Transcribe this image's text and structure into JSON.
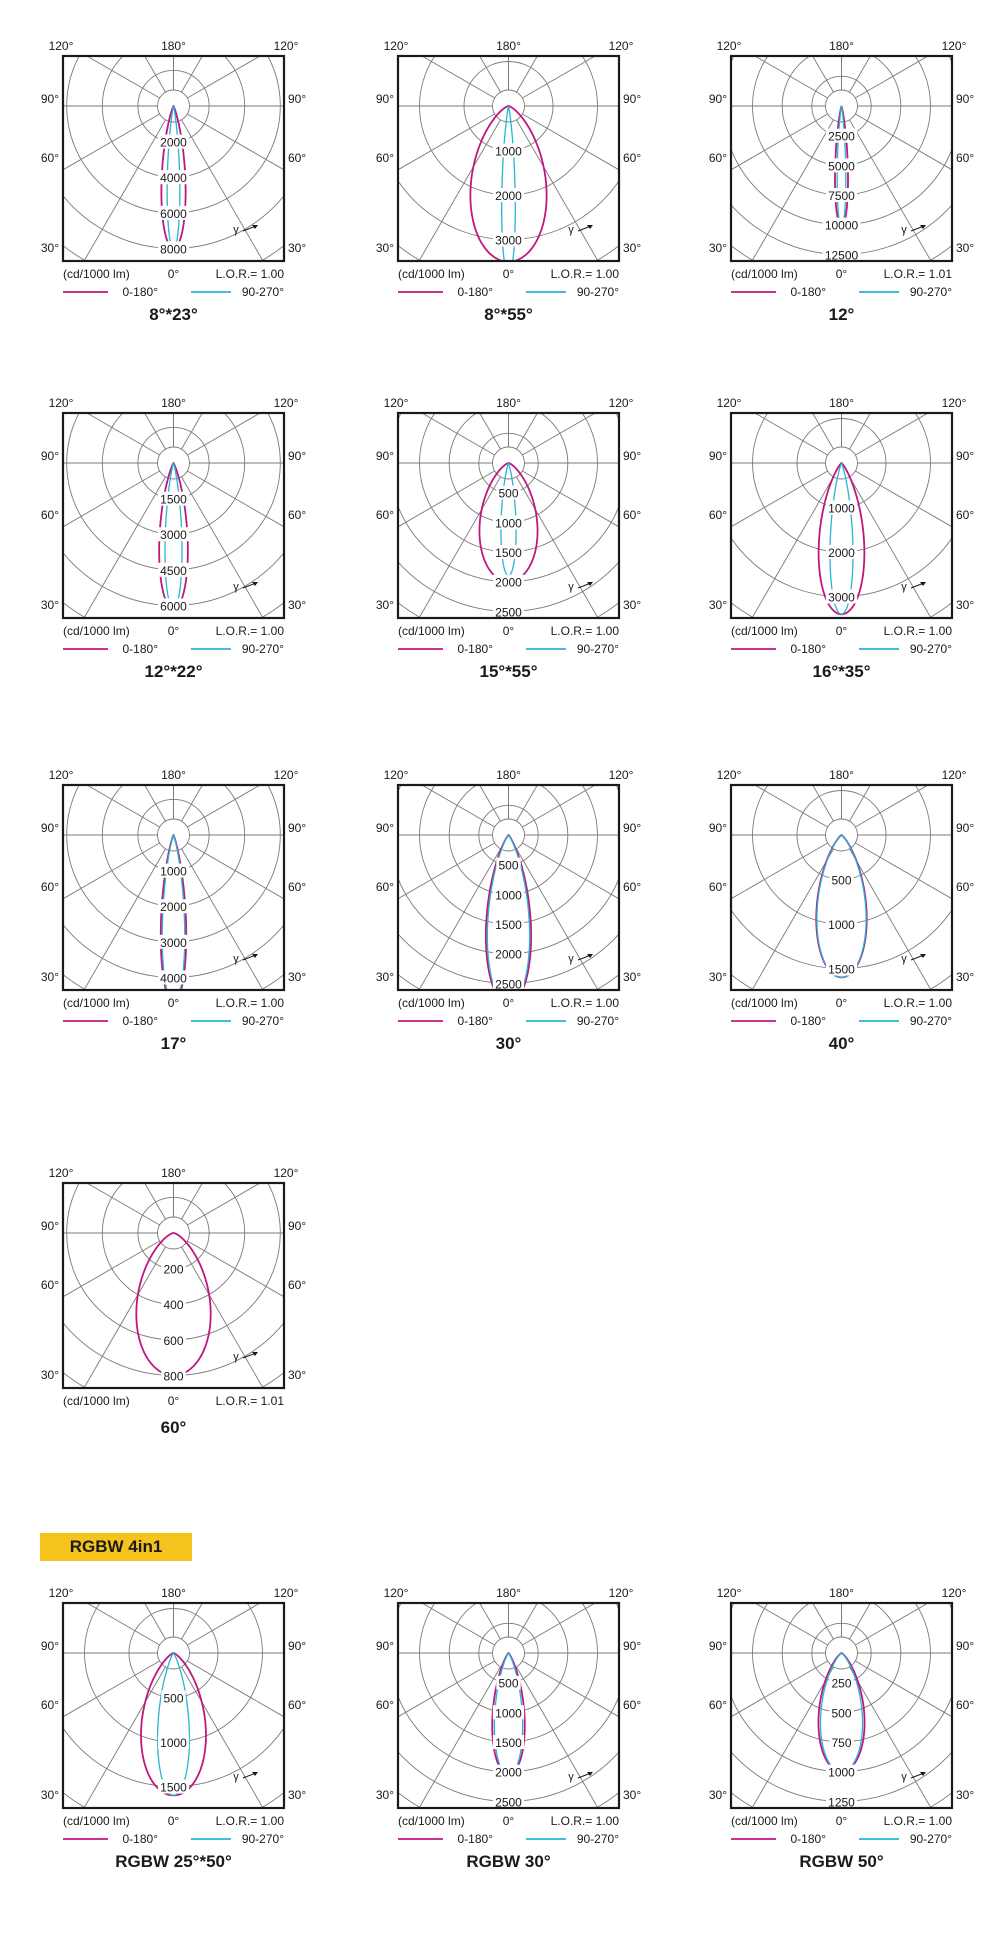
{
  "section": {
    "label": "RGBW 4in1"
  },
  "colors": {
    "c0_180": "#c0177f",
    "c90_270": "#26b5d3",
    "grid": "#7a7a7a",
    "frame": "#1a1a1a",
    "badge": "#f6c21c"
  },
  "common": {
    "unit_label": "(cd/1000 lm)",
    "zero_label": "0°",
    "angle_labels": {
      "top_left": "120°",
      "top_center": "180°",
      "top_right": "120°",
      "side_90": "90°",
      "side_60": "60°",
      "side_30": "30°"
    },
    "gamma_label": "γ",
    "legend": {
      "s1": "0-180°",
      "s2": "90-270°"
    }
  },
  "chart_data": [
    {
      "type": "polar",
      "title": "8°*23°",
      "lor": "L.O.R.= 1.00",
      "rings": [
        "2000",
        "4000",
        "6000",
        "8000",
        "10000"
      ],
      "r_max": 10000,
      "legend": true,
      "series": [
        {
          "name": "0-180°",
          "angle": 9.5,
          "peak": 8000
        },
        {
          "name": "90-270°",
          "angle": 5,
          "peak": 8000
        }
      ]
    },
    {
      "type": "polar",
      "title": "8°*55°",
      "lor": "L.O.R.= 1.00",
      "rings": [
        "1000",
        "2000",
        "3000",
        "4000"
      ],
      "r_max": 4000,
      "legend": true,
      "series": [
        {
          "name": "0-180°",
          "angle": 28,
          "peak": 3500
        },
        {
          "name": "90-270°",
          "angle": 4.5,
          "peak": 3800
        }
      ]
    },
    {
      "type": "polar",
      "title": "12°",
      "lor": "L.O.R.= 1.01",
      "rings": [
        "2500",
        "5000",
        "7500",
        "10000",
        "12500",
        "15000"
      ],
      "r_max": 15000,
      "legend": true,
      "series": [
        {
          "name": "0-180°",
          "angle": 6,
          "peak": 10200
        },
        {
          "name": "90-270°",
          "angle": 4,
          "peak": 10200
        }
      ]
    },
    {
      "type": "polar",
      "title": "12°*22°",
      "lor": "L.O.R.= 1.00",
      "rings": [
        "1500",
        "3000",
        "4500",
        "6000",
        "7500"
      ],
      "r_max": 7500,
      "legend": true,
      "series": [
        {
          "name": "0-180°",
          "angle": 11,
          "peak": 6150
        },
        {
          "name": "90-270°",
          "angle": 6.5,
          "peak": 6150
        }
      ]
    },
    {
      "type": "polar",
      "title": "15°*55°",
      "lor": "L.O.R.= 1.00",
      "rings": [
        "500",
        "1000",
        "1500",
        "2000",
        "2500",
        "3000"
      ],
      "r_max": 3000,
      "legend": true,
      "series": [
        {
          "name": "0-180°",
          "angle": 28,
          "peak": 2000
        },
        {
          "name": "90-270°",
          "angle": 7.5,
          "peak": 1900
        }
      ]
    },
    {
      "type": "polar",
      "title": "16°*35°",
      "lor": "L.O.R.= 1.00",
      "rings": [
        "1000",
        "2000",
        "3000",
        "4000"
      ],
      "r_max": 4000,
      "legend": true,
      "series": [
        {
          "name": "0-180°",
          "angle": 17,
          "peak": 3400
        },
        {
          "name": "90-270°",
          "angle": 8.5,
          "peak": 3400
        }
      ]
    },
    {
      "type": "polar",
      "title": "17°",
      "lor": "L.O.R.= 1.00",
      "rings": [
        "1000",
        "2000",
        "3000",
        "4000",
        "5000"
      ],
      "r_max": 5000,
      "legend": true,
      "series": [
        {
          "name": "0-180°",
          "angle": 8.5,
          "peak": 4700
        },
        {
          "name": "90-270°",
          "angle": 7.5,
          "peak": 4700
        }
      ]
    },
    {
      "type": "polar",
      "title": "30°",
      "lor": "L.O.R.= 1.00",
      "rings": [
        "500",
        "1000",
        "1500",
        "2000",
        "2500",
        "3000"
      ],
      "r_max": 3000,
      "legend": true,
      "series": [
        {
          "name": "0-180°",
          "angle": 15,
          "peak": 2850
        },
        {
          "name": "90-270°",
          "angle": 14,
          "peak": 2850
        }
      ]
    },
    {
      "type": "polar",
      "title": "40°",
      "lor": "L.O.R.= 1.00",
      "rings": [
        "500",
        "1000",
        "1500",
        "2000"
      ],
      "r_max": 2000,
      "legend": true,
      "series": [
        {
          "name": "0-180°",
          "angle": 20,
          "peak": 1600
        },
        {
          "name": "90-270°",
          "angle": 19.5,
          "peak": 1600
        }
      ]
    },
    {
      "type": "polar",
      "title": "60°",
      "lor": "L.O.R.= 1.01",
      "rings": [
        "200",
        "400",
        "600",
        "800",
        "1000"
      ],
      "r_max": 1000,
      "legend": false,
      "series": [
        {
          "name": "0-180°",
          "angle": 30,
          "peak": 800
        }
      ]
    },
    {
      "type": "polar",
      "title": "RGBW 25°*50°",
      "lor": "L.O.R.= 1.00",
      "rings": [
        "500",
        "1000",
        "1500",
        "2000"
      ],
      "r_max": 2000,
      "legend": true,
      "series": [
        {
          "name": "0-180°",
          "angle": 26,
          "peak": 1600
        },
        {
          "name": "90-270°",
          "angle": 12.5,
          "peak": 1600
        }
      ]
    },
    {
      "type": "polar",
      "title": "RGBW 30°",
      "lor": "L.O.R.= 1.00",
      "rings": [
        "500",
        "1000",
        "1500",
        "2000",
        "2500",
        "3000"
      ],
      "r_max": 3000,
      "legend": true,
      "series": [
        {
          "name": "0-180°",
          "angle": 15,
          "peak": 2050
        },
        {
          "name": "90-270°",
          "angle": 13,
          "peak": 2050
        }
      ]
    },
    {
      "type": "polar",
      "title": "RGBW 50°",
      "lor": "L.O.R.= 1.00",
      "rings": [
        "250",
        "500",
        "750",
        "1000",
        "1250",
        "1500"
      ],
      "r_max": 1500,
      "legend": true,
      "series": [
        {
          "name": "0-180°",
          "angle": 22,
          "peak": 1000
        },
        {
          "name": "90-270°",
          "angle": 20,
          "peak": 1000
        }
      ]
    }
  ]
}
